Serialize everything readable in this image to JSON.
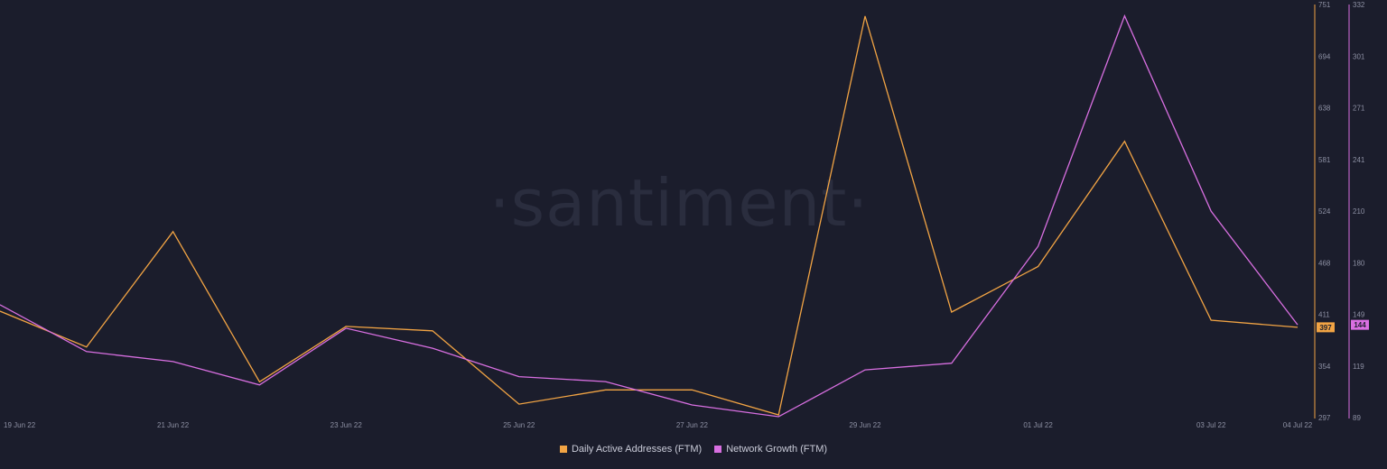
{
  "watermark": "·santiment·",
  "colors": {
    "background": "#1b1d2c",
    "daa": "#f2a444",
    "ng": "#d86fe1"
  },
  "chart_data": {
    "type": "line",
    "x": [
      "19 Jun 22",
      "20 Jun 22",
      "21 Jun 22",
      "22 Jun 22",
      "23 Jun 22",
      "24 Jun 22",
      "25 Jun 22",
      "26 Jun 22",
      "27 Jun 22",
      "28 Jun 22",
      "29 Jun 22",
      "30 Jun 22",
      "01 Jul 22",
      "02 Jul 22",
      "03 Jul 22",
      "04 Jul 22"
    ],
    "x_tick_labels": [
      "19 Jun 22",
      "21 Jun 22",
      "23 Jun 22",
      "25 Jun 22",
      "27 Jun 22",
      "29 Jun 22",
      "01 Jul 22",
      "03 Jul 22",
      "04 Jul 22"
    ],
    "series": [
      {
        "name": "Daily Active Addresses (FTM)",
        "color": "#f2a444",
        "axis": "left",
        "values": [
          415,
          375,
          504,
          336,
          398,
          393,
          311,
          327,
          327,
          299,
          745,
          414,
          465,
          605,
          405,
          397
        ],
        "last_value_label": "397"
      },
      {
        "name": "Network Growth (FTM)",
        "color": "#d86fe1",
        "axis": "right",
        "values": [
          156,
          128,
          122,
          108,
          142,
          130,
          113,
          110,
          96,
          89,
          117,
          121,
          191,
          329,
          212,
          144
        ],
        "last_value_label": "144"
      }
    ],
    "y_axis_left": {
      "ticks": [
        "751",
        "694",
        "638",
        "581",
        "524",
        "468",
        "411",
        "354",
        "297"
      ],
      "ylim": [
        297,
        751
      ],
      "color": "#f2a444"
    },
    "y_axis_right": {
      "ticks": [
        "332",
        "301",
        "271",
        "241",
        "210",
        "180",
        "149",
        "119",
        "89"
      ],
      "ylim": [
        89,
        332
      ],
      "color": "#d86fe1"
    },
    "legend_position": "bottom-center",
    "grid": false
  },
  "legend": {
    "items": [
      {
        "label": "Daily Active Addresses (FTM)",
        "color": "#f2a444"
      },
      {
        "label": "Network Growth (FTM)",
        "color": "#d86fe1"
      }
    ]
  }
}
